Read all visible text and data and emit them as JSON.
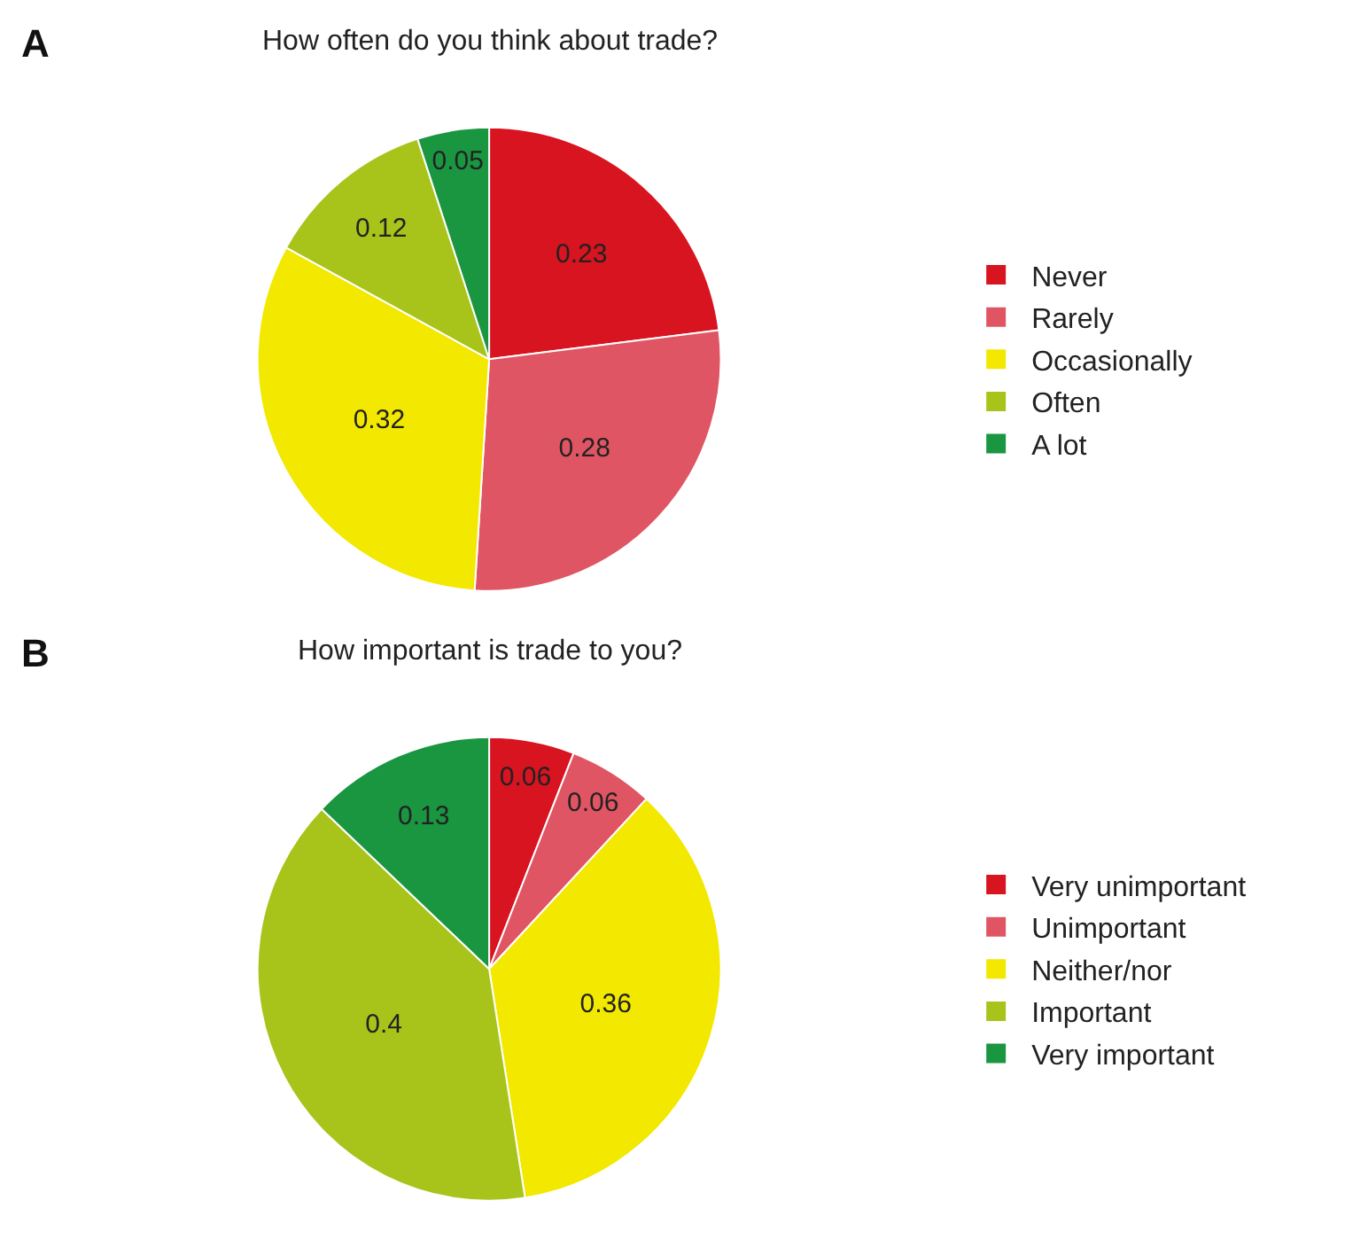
{
  "chart_data": [
    {
      "type": "pie",
      "title": "How often do you think about trade?",
      "annotations": [
        "A"
      ],
      "categories": [
        "Never",
        "Rarely",
        "Occasionally",
        "Often",
        "A lot"
      ],
      "values": [
        0.23,
        0.28,
        0.32,
        0.12,
        0.05
      ],
      "colors": [
        "#d7141f",
        "#e05563",
        "#f2e800",
        "#a8c41a",
        "#1a9641"
      ],
      "data_labels": true,
      "legend": "right"
    },
    {
      "type": "pie",
      "title": "How important is trade to you?",
      "annotations": [
        "B"
      ],
      "categories": [
        "Very unimportant",
        "Unimportant",
        "Neither/nor",
        "Important",
        "Very important"
      ],
      "values": [
        0.06,
        0.06,
        0.36,
        0.4,
        0.13
      ],
      "colors": [
        "#d7141f",
        "#e05563",
        "#f2e800",
        "#a8c41a",
        "#1a9641"
      ],
      "data_labels": true,
      "legend": "right"
    }
  ]
}
